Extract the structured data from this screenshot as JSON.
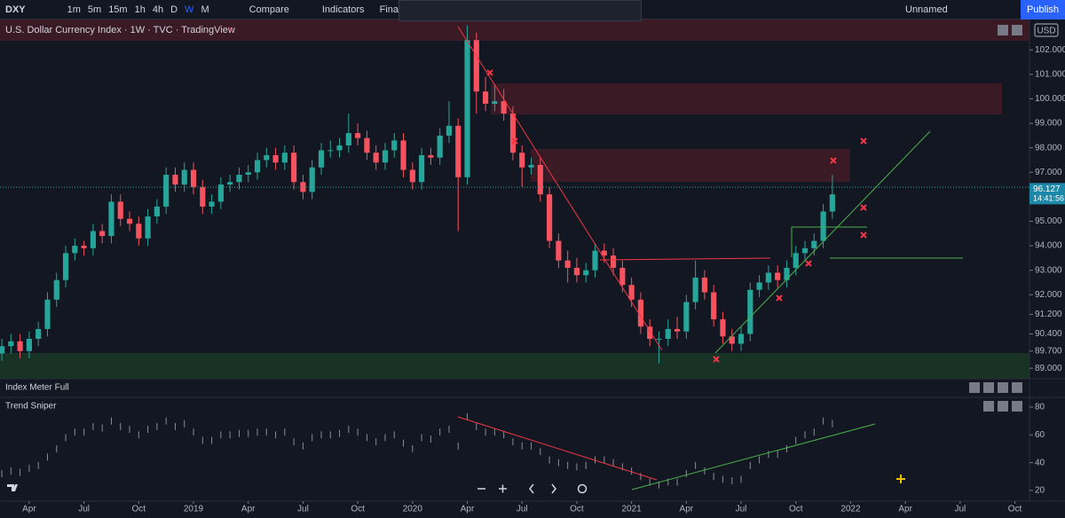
{
  "toolbar": {
    "symbol": "DXY",
    "intervals": [
      "1m",
      "5m",
      "15m",
      "1h",
      "4h",
      "D",
      "W",
      "M"
    ],
    "active_interval": "W",
    "compare": "Compare",
    "indicators": "Indicators",
    "financials": "Finar",
    "layout": "Unnamed",
    "publish": "Publish"
  },
  "indicator_legend": "Index Meter Full",
  "chart_data": [
    {
      "type": "candlestick",
      "title": "U.S. Dollar Currency Index · 1W · TVC · TradingView",
      "currency": "USD",
      "up_color": "#26a69a",
      "down_color": "#f7525f",
      "last_price": 96.127,
      "countdown": "14:41:56",
      "x": [
        1.5,
        2,
        2.5,
        3,
        3.5,
        4,
        4.5,
        5,
        5.5,
        6,
        6.5,
        7,
        7.5,
        8,
        8.5,
        9,
        9.5,
        10,
        10.5,
        11,
        11.5,
        12,
        12.5,
        13,
        13.5,
        14,
        14.5,
        15,
        15.5,
        16,
        16.5,
        17,
        17.5,
        18,
        18.5,
        19,
        19.5,
        20,
        20.5,
        21,
        21.5,
        22,
        22.5,
        23,
        23.5,
        24,
        24.5,
        25,
        25.5,
        26,
        26.5,
        27,
        27.5,
        28,
        28.5,
        29,
        29.5,
        30,
        30.5,
        31,
        31.5,
        32,
        32.5,
        33,
        33.5,
        34,
        34.5,
        35,
        35.5,
        36,
        36.5,
        37,
        37.5,
        38,
        38.5,
        39,
        39.5,
        40,
        40.5,
        41,
        41.5,
        42,
        42.5,
        43,
        43.5,
        44,
        44.5,
        45,
        45.5,
        46,
        46.5,
        47
      ],
      "candles": [
        [
          89.6,
          90.2,
          89.3,
          89.9
        ],
        [
          89.9,
          90.4,
          89.6,
          90.1
        ],
        [
          90.1,
          90.4,
          89.4,
          89.7
        ],
        [
          89.7,
          90.5,
          89.4,
          90.2
        ],
        [
          90.2,
          90.9,
          89.9,
          90.6
        ],
        [
          90.6,
          92.1,
          90.3,
          91.8
        ],
        [
          91.8,
          92.9,
          91.5,
          92.6
        ],
        [
          92.6,
          94.0,
          92.3,
          93.7
        ],
        [
          93.7,
          94.3,
          93.4,
          94.0
        ],
        [
          94.0,
          94.2,
          93.6,
          93.9
        ],
        [
          93.9,
          94.9,
          93.6,
          94.6
        ],
        [
          94.6,
          94.9,
          94.1,
          94.4
        ],
        [
          94.4,
          96.1,
          94.1,
          95.8
        ],
        [
          95.8,
          96.1,
          94.8,
          95.1
        ],
        [
          95.1,
          95.4,
          94.6,
          94.9
        ],
        [
          94.9,
          95.2,
          94.0,
          94.3
        ],
        [
          94.3,
          95.5,
          94.0,
          95.2
        ],
        [
          95.2,
          95.9,
          94.9,
          95.6
        ],
        [
          95.6,
          97.2,
          95.3,
          96.9
        ],
        [
          96.9,
          97.2,
          96.2,
          96.5
        ],
        [
          96.5,
          97.4,
          96.2,
          97.1
        ],
        [
          97.1,
          97.4,
          96.1,
          96.4
        ],
        [
          96.4,
          96.7,
          95.3,
          95.6
        ],
        [
          95.6,
          96.1,
          95.3,
          95.8
        ],
        [
          95.8,
          96.8,
          95.5,
          96.5
        ],
        [
          96.5,
          96.9,
          96.2,
          96.6
        ],
        [
          96.6,
          97.2,
          96.3,
          96.9
        ],
        [
          96.9,
          97.3,
          96.6,
          97.0
        ],
        [
          97.0,
          97.8,
          96.7,
          97.5
        ],
        [
          97.5,
          98.0,
          97.2,
          97.7
        ],
        [
          97.7,
          98.0,
          97.1,
          97.4
        ],
        [
          97.4,
          98.1,
          97.1,
          97.8
        ],
        [
          97.8,
          98.1,
          96.3,
          96.6
        ],
        [
          96.6,
          96.9,
          95.9,
          96.2
        ],
        [
          96.2,
          97.5,
          95.9,
          97.2
        ],
        [
          97.2,
          98.2,
          96.9,
          97.9
        ],
        [
          97.9,
          98.3,
          97.6,
          97.9
        ],
        [
          97.9,
          98.4,
          97.6,
          98.1
        ],
        [
          98.1,
          99.4,
          97.8,
          98.6
        ],
        [
          98.6,
          99.0,
          98.1,
          98.4
        ],
        [
          98.4,
          98.7,
          97.5,
          97.8
        ],
        [
          97.8,
          98.1,
          97.1,
          97.4
        ],
        [
          97.4,
          98.2,
          97.1,
          97.9
        ],
        [
          97.9,
          98.6,
          97.6,
          98.3
        ],
        [
          98.3,
          98.6,
          96.8,
          97.1
        ],
        [
          97.1,
          97.4,
          96.3,
          96.6
        ],
        [
          96.6,
          98.0,
          96.3,
          97.7
        ],
        [
          97.7,
          98.0,
          97.3,
          97.6
        ],
        [
          97.6,
          98.8,
          97.3,
          98.5
        ],
        [
          98.5,
          99.9,
          98.2,
          98.9
        ],
        [
          98.9,
          99.2,
          94.6,
          96.8
        ],
        [
          96.8,
          103.0,
          96.5,
          102.4
        ],
        [
          102.4,
          102.7,
          99.4,
          100.3
        ],
        [
          100.3,
          100.9,
          99.5,
          99.8
        ],
        [
          99.8,
          100.6,
          99.5,
          99.9
        ],
        [
          99.9,
          100.4,
          99.1,
          99.4
        ],
        [
          99.4,
          99.7,
          97.5,
          97.8
        ],
        [
          97.8,
          98.1,
          96.4,
          97.2
        ],
        [
          97.2,
          97.6,
          96.9,
          97.3
        ],
        [
          97.3,
          97.6,
          95.8,
          96.1
        ],
        [
          96.1,
          96.4,
          93.9,
          94.2
        ],
        [
          94.2,
          94.5,
          93.1,
          93.4
        ],
        [
          93.4,
          93.8,
          92.5,
          93.1
        ],
        [
          93.1,
          93.5,
          92.5,
          92.8
        ],
        [
          92.8,
          93.3,
          92.5,
          93.0
        ],
        [
          93.0,
          94.1,
          92.7,
          93.8
        ],
        [
          93.8,
          94.1,
          93.3,
          93.6
        ],
        [
          93.6,
          93.9,
          92.8,
          93.1
        ],
        [
          93.1,
          93.4,
          92.1,
          92.4
        ],
        [
          92.4,
          92.7,
          91.5,
          91.8
        ],
        [
          91.8,
          92.1,
          90.4,
          90.7
        ],
        [
          90.7,
          91.0,
          89.9,
          90.2
        ],
        [
          90.2,
          90.5,
          89.2,
          90.2
        ],
        [
          90.2,
          91.0,
          89.9,
          90.6
        ],
        [
          90.6,
          91.1,
          90.2,
          90.5
        ],
        [
          90.5,
          92.0,
          90.2,
          91.7
        ],
        [
          91.7,
          93.4,
          91.4,
          92.7
        ],
        [
          92.7,
          93.0,
          91.8,
          92.1
        ],
        [
          92.1,
          92.4,
          90.7,
          91.0
        ],
        [
          91.0,
          91.3,
          90.0,
          90.3
        ],
        [
          90.3,
          90.6,
          89.7,
          90.0
        ],
        [
          90.0,
          90.7,
          89.7,
          90.4
        ],
        [
          90.4,
          92.5,
          90.1,
          92.2
        ],
        [
          92.2,
          92.8,
          91.9,
          92.5
        ],
        [
          92.5,
          93.2,
          92.2,
          92.9
        ],
        [
          92.9,
          93.2,
          92.3,
          92.6
        ],
        [
          92.6,
          93.4,
          92.3,
          93.1
        ],
        [
          93.1,
          94.0,
          92.8,
          93.7
        ],
        [
          93.7,
          94.2,
          93.4,
          93.9
        ],
        [
          93.9,
          94.5,
          93.6,
          94.2
        ],
        [
          94.2,
          95.7,
          93.9,
          95.4
        ],
        [
          95.4,
          96.9,
          95.1,
          96.1
        ]
      ],
      "ylim": [
        88.57,
        103.24
      ],
      "yticks": [
        {
          "value": 89,
          "label": "89.000"
        },
        {
          "value": 89.7,
          "label": "89.700"
        },
        {
          "value": 90.4,
          "label": "90.400"
        },
        {
          "value": 91.2,
          "label": "91.200"
        },
        {
          "value": 92,
          "label": "92.000"
        },
        {
          "value": 93,
          "label": "93.000"
        },
        {
          "value": 94,
          "label": "94.000"
        },
        {
          "value": 95,
          "label": "95.000"
        },
        {
          "value": 97,
          "label": "97.000"
        },
        {
          "value": 98,
          "label": "98.000"
        },
        {
          "value": 99,
          "label": "99.000"
        },
        {
          "value": 100,
          "label": "100.000"
        },
        {
          "value": 101,
          "label": "101.000"
        },
        {
          "value": 102,
          "label": "102.000"
        }
      ],
      "xlim": [
        1.4,
        57.8
      ],
      "xticks": [
        {
          "value": 3,
          "label": "Apr"
        },
        {
          "value": 6,
          "label": "Jul"
        },
        {
          "value": 9,
          "label": "Oct"
        },
        {
          "value": 12,
          "label": "2019"
        },
        {
          "value": 15,
          "label": "Apr"
        },
        {
          "value": 18,
          "label": "Jul"
        },
        {
          "value": 21,
          "label": "Oct"
        },
        {
          "value": 24,
          "label": "2020"
        },
        {
          "value": 27,
          "label": "Apr"
        },
        {
          "value": 30,
          "label": "Jul"
        },
        {
          "value": 33,
          "label": "Oct"
        },
        {
          "value": 36,
          "label": "2021"
        },
        {
          "value": 39,
          "label": "Apr"
        },
        {
          "value": 42,
          "label": "Jul"
        },
        {
          "value": 45,
          "label": "Oct"
        },
        {
          "value": 48,
          "label": "2022"
        },
        {
          "value": 51,
          "label": "Apr"
        },
        {
          "value": 54,
          "label": "Jul"
        },
        {
          "value": 57,
          "label": "Oct"
        }
      ]
    },
    {
      "type": "bar",
      "title": "Trend Sniper",
      "color": "#8a8d96",
      "values": [
        32,
        34,
        33,
        36,
        38,
        44,
        50,
        58,
        62,
        62,
        66,
        65,
        70,
        66,
        64,
        60,
        64,
        66,
        70,
        66,
        68,
        62,
        56,
        56,
        60,
        60,
        61,
        61,
        62,
        62,
        60,
        62,
        55,
        52,
        58,
        60,
        60,
        61,
        64,
        62,
        58,
        55,
        58,
        60,
        54,
        50,
        58,
        57,
        62,
        64,
        52,
        73,
        66,
        62,
        62,
        60,
        55,
        52,
        52,
        48,
        42,
        40,
        38,
        37,
        38,
        42,
        42,
        40,
        37,
        34,
        30,
        26,
        24,
        26,
        26,
        32,
        38,
        34,
        30,
        28,
        27,
        28,
        38,
        42,
        46,
        46,
        50,
        56,
        60,
        62,
        70,
        68
      ],
      "ylim": [
        12.3,
        87
      ],
      "yticks": [
        20,
        40,
        60,
        80
      ]
    }
  ]
}
